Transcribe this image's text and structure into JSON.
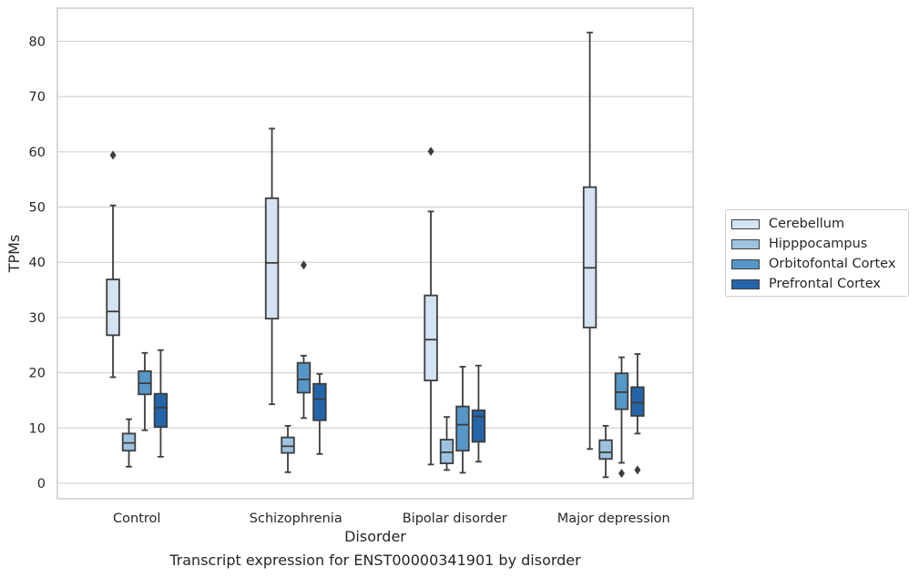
{
  "caption": "Transcript expression for ENST00000341901 by disorder",
  "chart_data": {
    "type": "box",
    "xlabel": "Disorder",
    "ylabel": "TPMs",
    "ylim": [
      -2.8,
      86
    ],
    "yticks": [
      0,
      10,
      20,
      30,
      40,
      50,
      60,
      70,
      80
    ],
    "grid": "horizontal",
    "legend_position": "right",
    "categories": [
      "Control",
      "Schizophrenia",
      "Bipolar disorder",
      "Major depression"
    ],
    "series": [
      {
        "name": "Cerebellum",
        "color": "#d4e3f3",
        "boxes": [
          {
            "whisker_low": 19.2,
            "q1": 26.8,
            "median": 31.1,
            "q3": 36.9,
            "whisker_high": 50.3,
            "outliers": [
              59.4
            ]
          },
          {
            "whisker_low": 14.3,
            "q1": 29.8,
            "median": 39.9,
            "q3": 51.6,
            "whisker_high": 64.2,
            "outliers": []
          },
          {
            "whisker_low": 3.4,
            "q1": 18.6,
            "median": 26.0,
            "q3": 34.0,
            "whisker_high": 49.2,
            "outliers": [
              60.1
            ]
          },
          {
            "whisker_low": 6.2,
            "q1": 28.2,
            "median": 39.0,
            "q3": 53.6,
            "whisker_high": 81.6,
            "outliers": []
          }
        ]
      },
      {
        "name": "Hipppocampus",
        "color": "#9dc3e0",
        "boxes": [
          {
            "whisker_low": 3.0,
            "q1": 5.9,
            "median": 7.3,
            "q3": 9.0,
            "whisker_high": 11.6,
            "outliers": []
          },
          {
            "whisker_low": 2.0,
            "q1": 5.5,
            "median": 6.7,
            "q3": 8.3,
            "whisker_high": 10.4,
            "outliers": []
          },
          {
            "whisker_low": 2.4,
            "q1": 3.6,
            "median": 5.6,
            "q3": 7.9,
            "whisker_high": 12.0,
            "outliers": []
          },
          {
            "whisker_low": 1.1,
            "q1": 4.4,
            "median": 5.6,
            "q3": 7.8,
            "whisker_high": 10.4,
            "outliers": []
          }
        ]
      },
      {
        "name": "Orbitofontal Cortex",
        "color": "#5597c7",
        "boxes": [
          {
            "whisker_low": 9.6,
            "q1": 16.1,
            "median": 18.1,
            "q3": 20.3,
            "whisker_high": 23.6,
            "outliers": []
          },
          {
            "whisker_low": 11.8,
            "q1": 16.4,
            "median": 18.8,
            "q3": 21.8,
            "whisker_high": 23.1,
            "outliers": [
              39.5
            ]
          },
          {
            "whisker_low": 1.9,
            "q1": 5.9,
            "median": 10.6,
            "q3": 13.9,
            "whisker_high": 21.1,
            "outliers": []
          },
          {
            "whisker_low": 3.7,
            "q1": 13.4,
            "median": 16.5,
            "q3": 19.9,
            "whisker_high": 22.8,
            "outliers": [
              1.8
            ]
          }
        ]
      },
      {
        "name": "Prefrontal Cortex",
        "color": "#2465a9",
        "boxes": [
          {
            "whisker_low": 4.8,
            "q1": 10.2,
            "median": 13.7,
            "q3": 16.2,
            "whisker_high": 24.1,
            "outliers": []
          },
          {
            "whisker_low": 5.3,
            "q1": 11.4,
            "median": 15.2,
            "q3": 18.0,
            "whisker_high": 19.8,
            "outliers": []
          },
          {
            "whisker_low": 3.9,
            "q1": 7.5,
            "median": 12.1,
            "q3": 13.2,
            "whisker_high": 21.3,
            "outliers": []
          },
          {
            "whisker_low": 9.0,
            "q1": 12.2,
            "median": 14.6,
            "q3": 17.4,
            "whisker_high": 23.4,
            "outliers": [
              2.4
            ]
          }
        ]
      }
    ]
  }
}
